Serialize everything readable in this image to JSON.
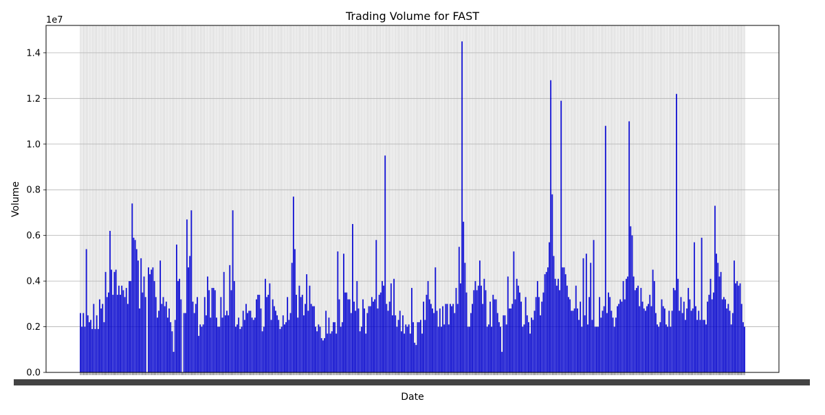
{
  "chart_data": {
    "type": "bar",
    "title": "Trading Volume for FAST",
    "xlabel": "Date",
    "ylabel": "Volume",
    "y_offset_label": "1e7",
    "ylim": [
      0,
      1.52
    ],
    "y_ticks": [
      0.0,
      0.2,
      0.4,
      0.6,
      0.8,
      1.0,
      1.2,
      1.4
    ],
    "y_tick_labels": [
      "0.0",
      "0.2",
      "0.4",
      "0.6",
      "0.8",
      "1.0",
      "1.2",
      "1.4"
    ],
    "x_tick_labels_legible": false,
    "grid": true,
    "bar_color": "#0000cc",
    "grid_color": "#b0b0b0",
    "values": [
      0.26,
      0.2,
      0.26,
      0.2,
      0.54,
      0.25,
      0.22,
      0.23,
      0.19,
      0.3,
      0.19,
      0.25,
      0.19,
      0.32,
      0.28,
      0.3,
      0.22,
      0.44,
      0.33,
      0.35,
      0.62,
      0.45,
      0.34,
      0.44,
      0.45,
      0.34,
      0.38,
      0.34,
      0.38,
      0.36,
      0.33,
      0.37,
      0.3,
      0.4,
      0.4,
      0.74,
      0.59,
      0.58,
      0.54,
      0.49,
      0.28,
      0.5,
      0.35,
      0.42,
      0.33,
      0.0,
      0.46,
      0.43,
      0.45,
      0.46,
      0.4,
      0.33,
      0.24,
      0.27,
      0.49,
      0.3,
      0.33,
      0.29,
      0.31,
      0.24,
      0.28,
      0.22,
      0.18,
      0.09,
      0.23,
      0.56,
      0.4,
      0.41,
      0.32,
      0.0,
      0.26,
      0.26,
      0.67,
      0.46,
      0.51,
      0.71,
      0.31,
      0.26,
      0.3,
      0.33,
      0.16,
      0.21,
      0.2,
      0.21,
      0.33,
      0.25,
      0.42,
      0.36,
      0.24,
      0.37,
      0.37,
      0.36,
      0.24,
      0.2,
      0.2,
      0.33,
      0.24,
      0.44,
      0.25,
      0.27,
      0.25,
      0.47,
      0.36,
      0.71,
      0.4,
      0.2,
      0.21,
      0.24,
      0.19,
      0.2,
      0.27,
      0.23,
      0.3,
      0.26,
      0.27,
      0.27,
      0.24,
      0.23,
      0.24,
      0.32,
      0.34,
      0.34,
      0.28,
      0.18,
      0.2,
      0.41,
      0.33,
      0.34,
      0.39,
      0.23,
      0.32,
      0.29,
      0.27,
      0.25,
      0.23,
      0.19,
      0.2,
      0.25,
      0.21,
      0.22,
      0.33,
      0.23,
      0.26,
      0.48,
      0.77,
      0.54,
      0.34,
      0.24,
      0.38,
      0.33,
      0.34,
      0.25,
      0.3,
      0.43,
      0.27,
      0.38,
      0.3,
      0.29,
      0.29,
      0.2,
      0.18,
      0.21,
      0.2,
      0.15,
      0.14,
      0.15,
      0.27,
      0.17,
      0.24,
      0.17,
      0.18,
      0.22,
      0.22,
      0.17,
      0.53,
      0.32,
      0.2,
      0.22,
      0.52,
      0.35,
      0.35,
      0.32,
      0.32,
      0.26,
      0.65,
      0.31,
      0.27,
      0.4,
      0.28,
      0.18,
      0.2,
      0.32,
      0.28,
      0.17,
      0.26,
      0.29,
      0.29,
      0.33,
      0.31,
      0.32,
      0.58,
      0.28,
      0.34,
      0.35,
      0.4,
      0.38,
      0.95,
      0.3,
      0.27,
      0.31,
      0.39,
      0.25,
      0.41,
      0.25,
      0.2,
      0.23,
      0.27,
      0.18,
      0.25,
      0.17,
      0.21,
      0.2,
      0.21,
      0.17,
      0.37,
      0.22,
      0.13,
      0.12,
      0.22,
      0.22,
      0.23,
      0.17,
      0.31,
      0.23,
      0.34,
      0.4,
      0.32,
      0.3,
      0.28,
      0.26,
      0.46,
      0.27,
      0.2,
      0.28,
      0.2,
      0.29,
      0.21,
      0.3,
      0.3,
      0.21,
      0.3,
      0.29,
      0.3,
      0.26,
      0.37,
      0.3,
      0.55,
      0.39,
      1.45,
      0.66,
      0.48,
      0.35,
      0.2,
      0.2,
      0.26,
      0.3,
      0.36,
      0.4,
      0.36,
      0.38,
      0.49,
      0.38,
      0.3,
      0.41,
      0.36,
      0.2,
      0.21,
      0.31,
      0.2,
      0.34,
      0.32,
      0.32,
      0.26,
      0.22,
      0.2,
      0.09,
      0.25,
      0.25,
      0.21,
      0.42,
      0.28,
      0.28,
      0.3,
      0.53,
      0.32,
      0.41,
      0.38,
      0.35,
      0.31,
      0.2,
      0.21,
      0.33,
      0.25,
      0.22,
      0.17,
      0.24,
      0.23,
      0.27,
      0.33,
      0.4,
      0.33,
      0.25,
      0.31,
      0.35,
      0.43,
      0.44,
      0.46,
      0.57,
      1.28,
      0.78,
      0.51,
      0.41,
      0.38,
      0.41,
      0.36,
      1.19,
      0.46,
      0.46,
      0.43,
      0.38,
      0.33,
      0.32,
      0.27,
      0.27,
      0.28,
      0.38,
      0.28,
      0.23,
      0.31,
      0.2,
      0.5,
      0.25,
      0.52,
      0.21,
      0.33,
      0.48,
      0.23,
      0.58,
      0.2,
      0.2,
      0.2,
      0.33,
      0.24,
      0.27,
      0.29,
      1.08,
      0.26,
      0.35,
      0.33,
      0.27,
      0.24,
      0.2,
      0.24,
      0.29,
      0.3,
      0.32,
      0.31,
      0.4,
      0.32,
      0.41,
      0.42,
      1.1,
      0.64,
      0.6,
      0.42,
      0.36,
      0.37,
      0.38,
      0.29,
      0.37,
      0.31,
      0.28,
      0.27,
      0.29,
      0.3,
      0.34,
      0.29,
      0.45,
      0.4,
      0.26,
      0.21,
      0.2,
      0.22,
      0.32,
      0.29,
      0.28,
      0.21,
      0.2,
      0.27,
      0.2,
      0.27,
      0.37,
      0.36,
      1.22,
      0.41,
      0.27,
      0.33,
      0.26,
      0.31,
      0.23,
      0.28,
      0.37,
      0.32,
      0.27,
      0.28,
      0.57,
      0.29,
      0.23,
      0.27,
      0.23,
      0.59,
      0.23,
      0.23,
      0.21,
      0.31,
      0.34,
      0.41,
      0.32,
      0.35,
      0.73,
      0.52,
      0.48,
      0.42,
      0.44,
      0.32,
      0.33,
      0.32,
      0.28,
      0.3,
      0.27,
      0.21,
      0.26,
      0.49,
      0.39,
      0.4,
      0.38,
      0.39,
      0.3,
      0.22,
      0.2
    ]
  }
}
